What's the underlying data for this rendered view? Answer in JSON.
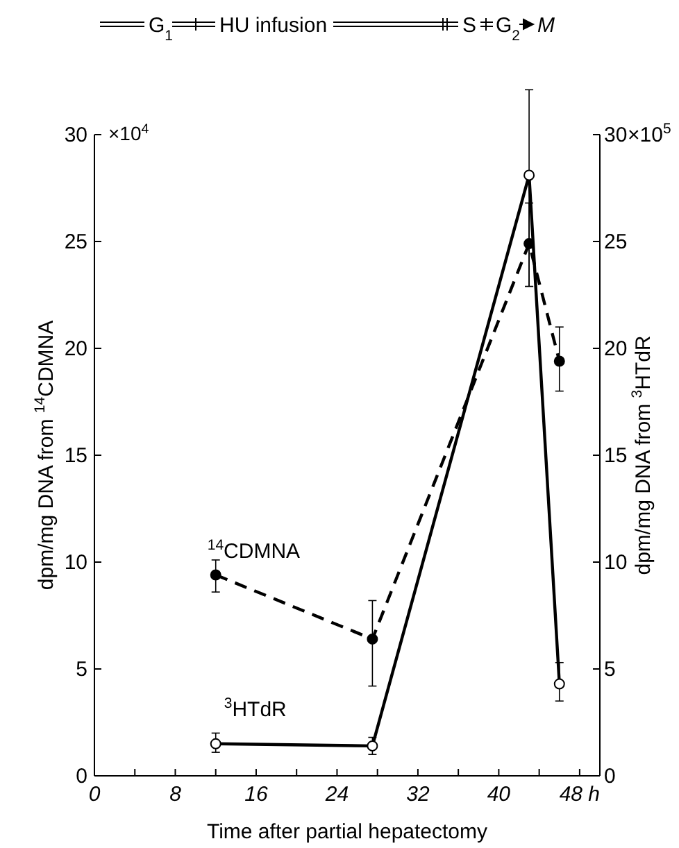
{
  "chart_data": {
    "type": "line",
    "xlabel": "Time after partial hepatectomy",
    "ylabel": "dpm/mg DNA from $^{14}$CDMNA",
    "y2label": "dpm/mg DNA from $^{3}$HTdR",
    "x": [
      12,
      27.5,
      43,
      46
    ],
    "series": [
      {
        "name": "$^{14}$CDMNA",
        "color": "#000000",
        "line_style": "dashed",
        "marker": "circle",
        "values": [
          9.4,
          6.4,
          24.9,
          19.4
        ],
        "errors": [
          [
            8.6,
            10.1
          ],
          [
            4.2,
            8.2
          ],
          [
            22.9,
            26.8
          ],
          [
            18,
            21
          ]
        ]
      },
      {
        "name": "$^{3}$HTdR",
        "color": "#000000",
        "line_style": "solid",
        "marker": "circle",
        "axis": "y2",
        "values": [
          1.5,
          1.4,
          28.1,
          4.3
        ],
        "errors": [
          [
            1.1,
            2.0
          ],
          [
            1.0,
            1.8
          ],
          [
            22.9,
            32.1
          ],
          [
            3.5,
            5.3
          ]
        ]
      }
    ],
    "xlim": [
      0,
      50
    ],
    "xticks": [
      0,
      {
        "value": 4,
        "label": null
      },
      8,
      {
        "value": 12,
        "label": null
      },
      16,
      {
        "value": 20,
        "label": null
      },
      24,
      {
        "value": 28,
        "label": null
      },
      32,
      {
        "value": 36,
        "label": null
      },
      40,
      {
        "value": 44,
        "label": null
      },
      {
        "value": 48,
        "label": "48 h"
      }
    ],
    "ylim": [
      0,
      30
    ],
    "yticks": [
      0,
      5,
      10,
      15,
      20,
      25,
      30
    ],
    "y2lim": [
      0,
      30
    ],
    "y2ticks": [
      0,
      5,
      10,
      15,
      20,
      25,
      30
    ],
    "annotations": [
      "×10$^{4}$",
      "G$_{1}$",
      "HU infusion",
      "S",
      "G$_{2}$",
      "M",
      "×10$^{5}$"
    ]
  }
}
